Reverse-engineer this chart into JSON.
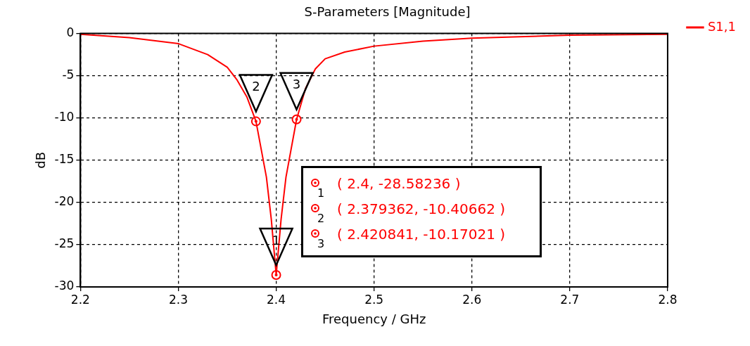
{
  "chart_data": {
    "type": "line",
    "title": "S-Parameters [Magnitude]",
    "xlabel": "Frequency / GHz",
    "ylabel": "dB",
    "xlim": [
      2.2,
      2.8
    ],
    "xticks": [
      2.2,
      2.3,
      2.4,
      2.5,
      2.6,
      2.7,
      2.8
    ],
    "ylim": [
      -30,
      0
    ],
    "yticks": [
      -30,
      -25,
      -20,
      -15,
      -10,
      -5,
      0
    ],
    "grid": true,
    "legend": "right",
    "line_style": "solid",
    "series": [
      {
        "name": "S1,1",
        "color": "#ff0000",
        "marker": "none",
        "x": [
          2.2,
          2.25,
          2.3,
          2.33,
          2.35,
          2.36,
          2.37,
          2.379362,
          2.39,
          2.395,
          2.4,
          2.405,
          2.41,
          2.420841,
          2.43,
          2.44,
          2.45,
          2.47,
          2.5,
          2.55,
          2.6,
          2.7,
          2.8
        ],
        "values": [
          -0.1,
          -0.5,
          -1.2,
          -2.5,
          -4,
          -5.5,
          -7.5,
          -10.40662,
          -17,
          -22,
          -28.58236,
          -22,
          -17,
          -10.17021,
          -6.5,
          -4.2,
          -3,
          -2.2,
          -1.5,
          -0.9,
          -0.55,
          -0.2,
          -0.1
        ]
      },
      {
        "type": "scatter",
        "color": "#ff0000",
        "marker": "circle",
        "x": [
          2.4,
          2.379362,
          2.420841
        ],
        "values": [
          -28.58236,
          -10.40662,
          -10.17021
        ]
      }
    ],
    "annotations": [
      {
        "text": "1",
        "x": 2.4,
        "y": -28.58236
      },
      {
        "text": "2",
        "x": 2.379362,
        "y": -10.40662
      },
      {
        "text": "3",
        "x": 2.420841,
        "y": -10.17021
      },
      "( 2.4, -28.58236 )",
      "( 2.379362, -10.40662 )",
      "( 2.420841, -10.17021 )"
    ]
  }
}
